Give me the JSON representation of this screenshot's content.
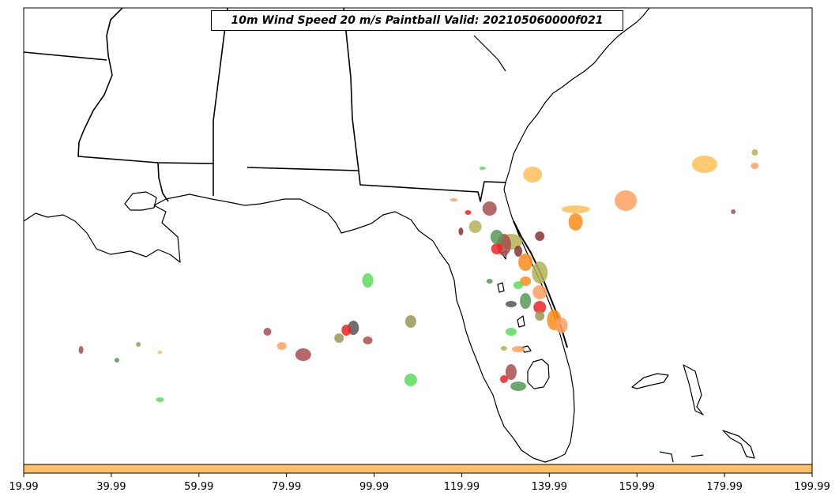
{
  "map": {
    "title": "10m Wind Speed 20 m/s Paintball Valid: 202105060000f021",
    "colorbar": {
      "fill_color": "#ffbf66",
      "tick_labels": [
        "19.99",
        "39.99",
        "59.99",
        "79.99",
        "99.99",
        "119.99",
        "139.99",
        "159.99",
        "179.99",
        "199.99"
      ]
    },
    "colors": {
      "land_line": "#000000",
      "ocean": "#ffffff",
      "orange": "#ff8c1a",
      "light_orange": "#ffa060",
      "gold": "#ffbf59",
      "green": "#59dd59",
      "dark_green": "#559955",
      "olive": "#999955",
      "khaki": "#b3b355",
      "red": "#ee2222",
      "brown": "#a84d4d",
      "maroon": "#883333",
      "gray": "#555555"
    },
    "paintballs": [
      {
        "x": 95,
        "y": 208,
        "rx": 16,
        "ry": 11,
        "color": "gold"
      },
      {
        "x": 84,
        "y": 254,
        "rx": 14,
        "ry": 13,
        "color": "light_orange"
      },
      {
        "x": 71,
        "y": 221,
        "rx": 12,
        "ry": 10,
        "color": "gold"
      },
      {
        "x": 77,
        "y": 265,
        "rx": 18,
        "ry": 5,
        "color": "gold"
      },
      {
        "x": 60,
        "y": 253,
        "rx": 5,
        "ry": 2,
        "color": "light_orange"
      },
      {
        "x": 77,
        "y": 281,
        "rx": 9,
        "ry": 11,
        "color": "orange"
      },
      {
        "x": 65,
        "y": 264,
        "rx": 9,
        "ry": 9,
        "color": "brown"
      },
      {
        "x": 63,
        "y": 287,
        "rx": 8,
        "ry": 8,
        "color": "khaki"
      },
      {
        "x": 68,
        "y": 306,
        "rx": 14,
        "ry": 10,
        "color": "khaki"
      },
      {
        "x": 67,
        "y": 310,
        "rx": 9,
        "ry": 14,
        "color": "brown"
      },
      {
        "x": 66,
        "y": 315,
        "rx": 7,
        "ry": 7,
        "color": "red"
      },
      {
        "x": 69,
        "y": 318,
        "rx": 5,
        "ry": 7,
        "color": "maroon"
      },
      {
        "x": 72,
        "y": 299,
        "rx": 6,
        "ry": 6,
        "color": "maroon"
      },
      {
        "x": 70,
        "y": 332,
        "rx": 9,
        "ry": 11,
        "color": "orange"
      },
      {
        "x": 72,
        "y": 345,
        "rx": 10,
        "ry": 14,
        "color": "khaki"
      },
      {
        "x": 70,
        "y": 356,
        "rx": 7,
        "ry": 6,
        "color": "orange"
      },
      {
        "x": 69,
        "y": 361,
        "rx": 6,
        "ry": 5,
        "color": "green"
      },
      {
        "x": 72,
        "y": 370,
        "rx": 9,
        "ry": 9,
        "color": "light_orange"
      },
      {
        "x": 70,
        "y": 381,
        "rx": 7,
        "ry": 10,
        "color": "dark_green"
      },
      {
        "x": 72,
        "y": 389,
        "rx": 8,
        "ry": 8,
        "color": "red"
      },
      {
        "x": 74,
        "y": 405,
        "rx": 9,
        "ry": 13,
        "color": "orange"
      },
      {
        "x": 75,
        "y": 412,
        "rx": 8,
        "ry": 10,
        "color": "light_orange"
      },
      {
        "x": 72,
        "y": 400,
        "rx": 6,
        "ry": 6,
        "color": "olive"
      },
      {
        "x": 68,
        "y": 420,
        "rx": 7,
        "ry": 5,
        "color": "green"
      },
      {
        "x": 69,
        "y": 442,
        "rx": 8,
        "ry": 4,
        "color": "light_orange"
      },
      {
        "x": 67,
        "y": 441,
        "rx": 4,
        "ry": 3,
        "color": "khaki"
      },
      {
        "x": 68,
        "y": 471,
        "rx": 7,
        "ry": 10,
        "color": "brown"
      },
      {
        "x": 67,
        "y": 480,
        "rx": 5,
        "ry": 5,
        "color": "red"
      },
      {
        "x": 69,
        "y": 489,
        "rx": 10,
        "ry": 6,
        "color": "dark_green"
      },
      {
        "x": 68,
        "y": 385,
        "rx": 7,
        "ry": 4,
        "color": "gray"
      },
      {
        "x": 65,
        "y": 356,
        "rx": 4,
        "ry": 3,
        "color": "dark_green"
      },
      {
        "x": 61,
        "y": 293,
        "rx": 3,
        "ry": 5,
        "color": "maroon"
      },
      {
        "x": 62,
        "y": 269,
        "rx": 4,
        "ry": 3,
        "color": "red"
      },
      {
        "x": 64,
        "y": 213,
        "rx": 4,
        "ry": 2,
        "color": "green"
      },
      {
        "x": 66,
        "y": 300,
        "rx": 8,
        "ry": 9,
        "color": "dark_green"
      },
      {
        "x": 48,
        "y": 355,
        "rx": 7,
        "ry": 9,
        "color": "green"
      },
      {
        "x": 46,
        "y": 415,
        "rx": 7,
        "ry": 9,
        "color": "gray"
      },
      {
        "x": 45,
        "y": 418,
        "rx": 6,
        "ry": 7,
        "color": "red"
      },
      {
        "x": 48,
        "y": 431,
        "rx": 6,
        "ry": 5,
        "color": "brown"
      },
      {
        "x": 44,
        "y": 428,
        "rx": 6,
        "ry": 6,
        "color": "olive"
      },
      {
        "x": 54,
        "y": 407,
        "rx": 7,
        "ry": 8,
        "color": "olive"
      },
      {
        "x": 54,
        "y": 481,
        "rx": 8,
        "ry": 8,
        "color": "green"
      },
      {
        "x": 39,
        "y": 449,
        "rx": 10,
        "ry": 8,
        "color": "brown"
      },
      {
        "x": 36,
        "y": 438,
        "rx": 6,
        "ry": 5,
        "color": "light_orange"
      },
      {
        "x": 34,
        "y": 420,
        "rx": 5,
        "ry": 5,
        "color": "brown"
      },
      {
        "x": 8,
        "y": 443,
        "rx": 3,
        "ry": 5,
        "color": "brown"
      },
      {
        "x": 16,
        "y": 436,
        "rx": 3,
        "ry": 3,
        "color": "olive"
      },
      {
        "x": 19,
        "y": 446,
        "rx": 3,
        "ry": 2,
        "color": "gold"
      },
      {
        "x": 13,
        "y": 456,
        "rx": 3,
        "ry": 3,
        "color": "dark_green"
      },
      {
        "x": 19,
        "y": 506,
        "rx": 5,
        "ry": 3,
        "color": "green"
      },
      {
        "x": 102,
        "y": 193,
        "rx": 4,
        "ry": 4,
        "color": "khaki"
      },
      {
        "x": 102,
        "y": 210,
        "rx": 5,
        "ry": 4,
        "color": "light_orange"
      },
      {
        "x": 99,
        "y": 268,
        "rx": 3,
        "ry": 3,
        "color": "brown"
      }
    ]
  }
}
